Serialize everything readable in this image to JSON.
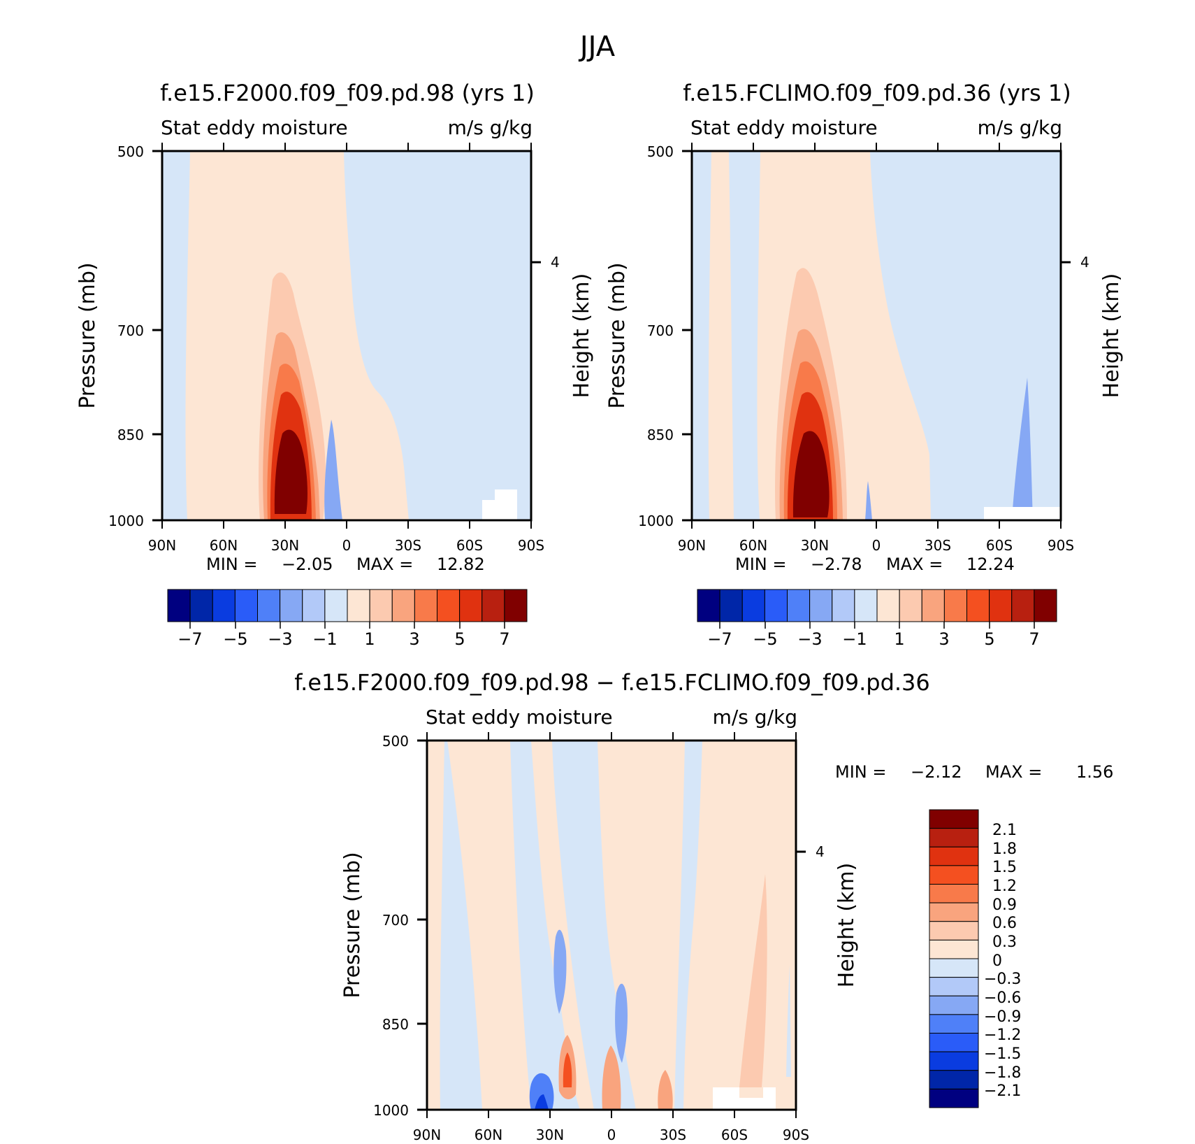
{
  "figure": {
    "title": "JJA"
  },
  "colors": {
    "main_scale": [
      "#000080",
      "#0026a8",
      "#0a3ce0",
      "#2a5cf8",
      "#4f80f8",
      "#86a8f4",
      "#b2c9f8",
      "#d6e6f8",
      "#fde6d4",
      "#fccab0",
      "#f9a47e",
      "#f87a4a",
      "#f45020",
      "#e03210",
      "#b82010",
      "#800000"
    ],
    "diff_scale": [
      "#000080",
      "#0026a8",
      "#0a3ce0",
      "#2a5cf8",
      "#4f80f8",
      "#86a8f4",
      "#b2c9f8",
      "#d6e6f8",
      "#fde6d4",
      "#fccab0",
      "#f9a47e",
      "#f87a4a",
      "#f45020",
      "#e03210",
      "#b82010",
      "#800000"
    ]
  },
  "chart_data": [
    {
      "type": "heatmap",
      "title": "f.e15.F2000.f09_f09.pd.98 (yrs 1)",
      "subtitle_left": "Stat eddy moisture",
      "subtitle_right": "m/s g/kg",
      "ylabel": "Pressure (mb)",
      "y2label": "Height (km)",
      "x_ticks": [
        "90N",
        "60N",
        "30N",
        "0",
        "30S",
        "60S",
        "90S"
      ],
      "y_ticks": [
        "500",
        "700",
        "850",
        "1000"
      ],
      "y2_ticks": [
        "4"
      ],
      "ylim": [
        1000,
        500
      ],
      "stats": {
        "min_label": "MIN =",
        "min": "-2.05",
        "max_label": "MAX =",
        "max": "12.82"
      },
      "colorbar_labels": [
        "-7",
        "-5",
        "-3",
        "-1",
        "1",
        "3",
        "5",
        "7"
      ]
    },
    {
      "type": "heatmap",
      "title": "f.e15.FCLIMO.f09_f09.pd.36 (yrs 1)",
      "subtitle_left": "Stat eddy moisture",
      "subtitle_right": "m/s g/kg",
      "ylabel": "Pressure (mb)",
      "y2label": "Height (km)",
      "x_ticks": [
        "90N",
        "60N",
        "30N",
        "0",
        "30S",
        "60S",
        "90S"
      ],
      "y_ticks": [
        "500",
        "700",
        "850",
        "1000"
      ],
      "y2_ticks": [
        "4"
      ],
      "ylim": [
        1000,
        500
      ],
      "stats": {
        "min_label": "MIN =",
        "min": "-2.78",
        "max_label": "MAX =",
        "max": "12.24"
      },
      "colorbar_labels": [
        "-7",
        "-5",
        "-3",
        "-1",
        "1",
        "3",
        "5",
        "7"
      ]
    },
    {
      "type": "heatmap",
      "title": "f.e15.F2000.f09_f09.pd.98 - f.e15.FCLIMO.f09_f09.pd.36",
      "subtitle_left": "Stat eddy moisture",
      "subtitle_right": "m/s g/kg",
      "ylabel": "Pressure (mb)",
      "y2label": "Height (km)",
      "x_ticks": [
        "90N",
        "60N",
        "30N",
        "0",
        "30S",
        "60S",
        "90S"
      ],
      "y_ticks": [
        "500",
        "700",
        "850",
        "1000"
      ],
      "y2_ticks": [
        "4"
      ],
      "ylim": [
        1000,
        500
      ],
      "stats": {
        "min_label": "MIN =",
        "min": "-2.12",
        "max_label": "MAX =",
        "max": "1.56"
      },
      "colorbar_labels": [
        "2.1",
        "1.8",
        "1.5",
        "1.2",
        "0.9",
        "0.6",
        "0.3",
        "0",
        "-0.3",
        "-0.6",
        "-0.9",
        "-1.2",
        "-1.5",
        "-1.8",
        "-2.1"
      ]
    }
  ]
}
